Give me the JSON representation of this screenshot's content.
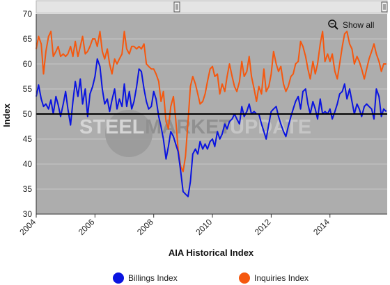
{
  "show_all_label": "Show all",
  "icons": {
    "zoom": "zoom-out-magnifier-icon",
    "handle": "scroll-handle-icon"
  },
  "watermark": {
    "part1": "STEEL",
    "part2": "MARKET",
    "part3": "UPDATE"
  },
  "colors": {
    "billings": "#0a14e0",
    "inquiries": "#f5580f",
    "plot_bg": "#adadad",
    "reference_line": "#000000",
    "grid": "#c8c8c8"
  },
  "chart_data": {
    "type": "line",
    "title": "",
    "xlabel": "AIA Historical Index",
    "ylabel": "Index",
    "xlim": [
      2004.0,
      2015.95
    ],
    "ylim": [
      30,
      70
    ],
    "yticks": [
      "30",
      "35",
      "40",
      "45",
      "50",
      "55",
      "60",
      "65",
      "70"
    ],
    "xticks": [
      "2004",
      "2006",
      "2008",
      "2010",
      "2012",
      "2014"
    ],
    "reference_line": 50,
    "grid": true,
    "legend_position": "bottom",
    "series": [
      {
        "name": "Billings Index",
        "color": "#0a14e0",
        "points": [
          [
            2004.0,
            53.5
          ],
          [
            2004.08,
            55.8
          ],
          [
            2004.17,
            53.0
          ],
          [
            2004.25,
            51.5
          ],
          [
            2004.33,
            52.0
          ],
          [
            2004.42,
            51.0
          ],
          [
            2004.5,
            52.8
          ],
          [
            2004.58,
            50.0
          ],
          [
            2004.67,
            53.5
          ],
          [
            2004.75,
            51.8
          ],
          [
            2004.83,
            49.5
          ],
          [
            2004.92,
            52.0
          ],
          [
            2005.0,
            54.5
          ],
          [
            2005.08,
            51.0
          ],
          [
            2005.17,
            47.8
          ],
          [
            2005.25,
            52.5
          ],
          [
            2005.33,
            56.5
          ],
          [
            2005.42,
            53.5
          ],
          [
            2005.5,
            57.0
          ],
          [
            2005.58,
            52.0
          ],
          [
            2005.67,
            55.0
          ],
          [
            2005.75,
            49.5
          ],
          [
            2005.83,
            54.0
          ],
          [
            2005.92,
            55.5
          ],
          [
            2006.0,
            57.5
          ],
          [
            2006.08,
            61.0
          ],
          [
            2006.17,
            59.5
          ],
          [
            2006.25,
            55.0
          ],
          [
            2006.33,
            52.0
          ],
          [
            2006.42,
            53.0
          ],
          [
            2006.5,
            50.5
          ],
          [
            2006.58,
            52.8
          ],
          [
            2006.67,
            55.0
          ],
          [
            2006.75,
            51.0
          ],
          [
            2006.83,
            53.0
          ],
          [
            2006.92,
            51.5
          ],
          [
            2007.0,
            56.0
          ],
          [
            2007.08,
            51.5
          ],
          [
            2007.17,
            54.5
          ],
          [
            2007.25,
            51.0
          ],
          [
            2007.33,
            52.5
          ],
          [
            2007.42,
            55.5
          ],
          [
            2007.5,
            59.0
          ],
          [
            2007.58,
            58.5
          ],
          [
            2007.67,
            55.0
          ],
          [
            2007.75,
            52.5
          ],
          [
            2007.83,
            51.0
          ],
          [
            2007.92,
            51.5
          ],
          [
            2008.0,
            54.5
          ],
          [
            2008.08,
            53.0
          ],
          [
            2008.17,
            49.5
          ],
          [
            2008.25,
            47.5
          ],
          [
            2008.33,
            45.0
          ],
          [
            2008.42,
            41.0
          ],
          [
            2008.5,
            43.5
          ],
          [
            2008.58,
            46.5
          ],
          [
            2008.67,
            45.5
          ],
          [
            2008.75,
            44.0
          ],
          [
            2008.83,
            42.5
          ],
          [
            2008.92,
            38.5
          ],
          [
            2009.0,
            34.5
          ],
          [
            2009.08,
            34.0
          ],
          [
            2009.17,
            33.5
          ],
          [
            2009.25,
            36.5
          ],
          [
            2009.33,
            42.0
          ],
          [
            2009.42,
            43.0
          ],
          [
            2009.5,
            42.0
          ],
          [
            2009.58,
            44.5
          ],
          [
            2009.67,
            43.0
          ],
          [
            2009.75,
            44.0
          ],
          [
            2009.83,
            43.0
          ],
          [
            2009.92,
            44.5
          ],
          [
            2010.0,
            45.0
          ],
          [
            2010.08,
            43.5
          ],
          [
            2010.17,
            46.5
          ],
          [
            2010.25,
            45.0
          ],
          [
            2010.33,
            46.0
          ],
          [
            2010.42,
            48.0
          ],
          [
            2010.5,
            47.0
          ],
          [
            2010.58,
            48.5
          ],
          [
            2010.67,
            49.0
          ],
          [
            2010.75,
            50.0
          ],
          [
            2010.83,
            49.0
          ],
          [
            2010.92,
            48.0
          ],
          [
            2011.0,
            51.5
          ],
          [
            2011.08,
            49.5
          ],
          [
            2011.17,
            50.5
          ],
          [
            2011.25,
            52.0
          ],
          [
            2011.33,
            50.0
          ],
          [
            2011.42,
            50.5
          ],
          [
            2011.5,
            50.0
          ],
          [
            2011.58,
            50.0
          ],
          [
            2011.67,
            48.0
          ],
          [
            2011.75,
            46.5
          ],
          [
            2011.83,
            45.0
          ],
          [
            2011.92,
            48.0
          ],
          [
            2012.0,
            50.5
          ],
          [
            2012.08,
            51.0
          ],
          [
            2012.17,
            51.5
          ],
          [
            2012.25,
            49.5
          ],
          [
            2012.33,
            48.0
          ],
          [
            2012.42,
            46.5
          ],
          [
            2012.5,
            45.5
          ],
          [
            2012.58,
            47.5
          ],
          [
            2012.67,
            49.5
          ],
          [
            2012.75,
            51.0
          ],
          [
            2012.83,
            52.5
          ],
          [
            2012.92,
            53.5
          ],
          [
            2013.0,
            51.0
          ],
          [
            2013.08,
            54.5
          ],
          [
            2013.17,
            55.0
          ],
          [
            2013.25,
            52.0
          ],
          [
            2013.33,
            50.0
          ],
          [
            2013.42,
            52.5
          ],
          [
            2013.5,
            51.0
          ],
          [
            2013.58,
            49.0
          ],
          [
            2013.67,
            53.0
          ],
          [
            2013.75,
            50.0
          ],
          [
            2013.83,
            50.5
          ],
          [
            2013.92,
            50.0
          ],
          [
            2014.0,
            51.0
          ],
          [
            2014.08,
            49.0
          ],
          [
            2014.17,
            50.5
          ],
          [
            2014.25,
            52.0
          ],
          [
            2014.33,
            54.0
          ],
          [
            2014.42,
            54.5
          ],
          [
            2014.5,
            56.0
          ],
          [
            2014.58,
            53.0
          ],
          [
            2014.67,
            55.0
          ],
          [
            2014.75,
            52.5
          ],
          [
            2014.83,
            50.0
          ],
          [
            2014.92,
            52.0
          ],
          [
            2015.0,
            51.0
          ],
          [
            2015.08,
            49.5
          ],
          [
            2015.17,
            51.5
          ],
          [
            2015.25,
            52.0
          ],
          [
            2015.33,
            51.5
          ],
          [
            2015.42,
            51.0
          ],
          [
            2015.5,
            49.0
          ],
          [
            2015.58,
            55.0
          ],
          [
            2015.67,
            53.5
          ],
          [
            2015.75,
            49.5
          ],
          [
            2015.83,
            51.0
          ],
          [
            2015.92,
            50.5
          ]
        ]
      },
      {
        "name": "Inquiries Index",
        "color": "#f5580f",
        "points": [
          [
            2004.0,
            63.0
          ],
          [
            2004.08,
            65.5
          ],
          [
            2004.17,
            64.0
          ],
          [
            2004.25,
            58.0
          ],
          [
            2004.33,
            62.5
          ],
          [
            2004.42,
            65.5
          ],
          [
            2004.5,
            66.5
          ],
          [
            2004.58,
            61.5
          ],
          [
            2004.67,
            62.5
          ],
          [
            2004.75,
            63.5
          ],
          [
            2004.83,
            61.5
          ],
          [
            2004.92,
            62.0
          ],
          [
            2005.0,
            61.5
          ],
          [
            2005.08,
            62.0
          ],
          [
            2005.17,
            63.5
          ],
          [
            2005.25,
            61.5
          ],
          [
            2005.33,
            64.5
          ],
          [
            2005.42,
            61.5
          ],
          [
            2005.5,
            63.5
          ],
          [
            2005.58,
            65.5
          ],
          [
            2005.67,
            62.0
          ],
          [
            2005.75,
            62.5
          ],
          [
            2005.83,
            63.5
          ],
          [
            2005.92,
            65.0
          ],
          [
            2006.0,
            65.0
          ],
          [
            2006.08,
            63.5
          ],
          [
            2006.17,
            66.5
          ],
          [
            2006.25,
            62.5
          ],
          [
            2006.33,
            61.0
          ],
          [
            2006.42,
            63.0
          ],
          [
            2006.5,
            60.0
          ],
          [
            2006.58,
            58.0
          ],
          [
            2006.67,
            61.0
          ],
          [
            2006.75,
            60.0
          ],
          [
            2006.83,
            61.0
          ],
          [
            2006.92,
            62.0
          ],
          [
            2007.0,
            66.5
          ],
          [
            2007.08,
            63.0
          ],
          [
            2007.17,
            62.0
          ],
          [
            2007.25,
            63.5
          ],
          [
            2007.33,
            63.5
          ],
          [
            2007.42,
            63.0
          ],
          [
            2007.5,
            63.5
          ],
          [
            2007.58,
            63.0
          ],
          [
            2007.67,
            64.0
          ],
          [
            2007.75,
            60.0
          ],
          [
            2007.83,
            59.5
          ],
          [
            2007.92,
            59.0
          ],
          [
            2008.0,
            59.0
          ],
          [
            2008.08,
            58.0
          ],
          [
            2008.17,
            56.5
          ],
          [
            2008.25,
            52.5
          ],
          [
            2008.33,
            54.5
          ],
          [
            2008.42,
            48.5
          ],
          [
            2008.5,
            47.0
          ],
          [
            2008.58,
            51.5
          ],
          [
            2008.67,
            53.5
          ],
          [
            2008.75,
            49.0
          ],
          [
            2008.83,
            43.0
          ],
          [
            2008.92,
            39.5
          ],
          [
            2009.0,
            38.5
          ],
          [
            2009.08,
            41.5
          ],
          [
            2009.17,
            48.5
          ],
          [
            2009.25,
            55.5
          ],
          [
            2009.33,
            57.5
          ],
          [
            2009.42,
            56.0
          ],
          [
            2009.5,
            54.0
          ],
          [
            2009.58,
            52.0
          ],
          [
            2009.67,
            52.5
          ],
          [
            2009.75,
            54.0
          ],
          [
            2009.83,
            56.5
          ],
          [
            2009.92,
            59.0
          ],
          [
            2010.0,
            59.5
          ],
          [
            2010.08,
            57.5
          ],
          [
            2010.17,
            58.0
          ],
          [
            2010.25,
            54.0
          ],
          [
            2010.33,
            56.0
          ],
          [
            2010.42,
            54.5
          ],
          [
            2010.5,
            57.5
          ],
          [
            2010.58,
            60.0
          ],
          [
            2010.67,
            57.5
          ],
          [
            2010.75,
            55.5
          ],
          [
            2010.83,
            54.5
          ],
          [
            2010.92,
            56.5
          ],
          [
            2011.0,
            60.5
          ],
          [
            2011.08,
            57.5
          ],
          [
            2011.17,
            58.5
          ],
          [
            2011.25,
            61.5
          ],
          [
            2011.33,
            57.5
          ],
          [
            2011.42,
            55.0
          ],
          [
            2011.5,
            52.5
          ],
          [
            2011.58,
            55.5
          ],
          [
            2011.67,
            54.0
          ],
          [
            2011.75,
            59.0
          ],
          [
            2011.83,
            54.5
          ],
          [
            2011.92,
            55.5
          ],
          [
            2012.0,
            58.0
          ],
          [
            2012.08,
            62.5
          ],
          [
            2012.17,
            60.0
          ],
          [
            2012.25,
            58.5
          ],
          [
            2012.33,
            59.5
          ],
          [
            2012.42,
            56.0
          ],
          [
            2012.5,
            54.5
          ],
          [
            2012.58,
            55.5
          ],
          [
            2012.67,
            57.5
          ],
          [
            2012.75,
            58.0
          ],
          [
            2012.83,
            60.0
          ],
          [
            2012.92,
            60.5
          ],
          [
            2013.0,
            64.5
          ],
          [
            2013.08,
            63.5
          ],
          [
            2013.17,
            61.5
          ],
          [
            2013.25,
            59.0
          ],
          [
            2013.33,
            57.0
          ],
          [
            2013.42,
            60.5
          ],
          [
            2013.5,
            58.0
          ],
          [
            2013.58,
            60.0
          ],
          [
            2013.67,
            64.0
          ],
          [
            2013.75,
            66.5
          ],
          [
            2013.83,
            60.5
          ],
          [
            2013.92,
            62.0
          ],
          [
            2014.0,
            60.5
          ],
          [
            2014.08,
            62.0
          ],
          [
            2014.17,
            58.5
          ],
          [
            2014.25,
            57.0
          ],
          [
            2014.33,
            60.0
          ],
          [
            2014.42,
            63.5
          ],
          [
            2014.5,
            66.0
          ],
          [
            2014.58,
            66.5
          ],
          [
            2014.67,
            64.0
          ],
          [
            2014.75,
            63.0
          ],
          [
            2014.83,
            60.0
          ],
          [
            2014.92,
            61.5
          ],
          [
            2015.0,
            60.5
          ],
          [
            2015.08,
            59.0
          ],
          [
            2015.17,
            57.0
          ],
          [
            2015.25,
            59.0
          ],
          [
            2015.33,
            61.0
          ],
          [
            2015.42,
            62.5
          ],
          [
            2015.5,
            64.0
          ],
          [
            2015.58,
            62.0
          ],
          [
            2015.67,
            60.5
          ],
          [
            2015.75,
            58.5
          ],
          [
            2015.83,
            60.0
          ],
          [
            2015.92,
            60.0
          ]
        ]
      }
    ]
  }
}
